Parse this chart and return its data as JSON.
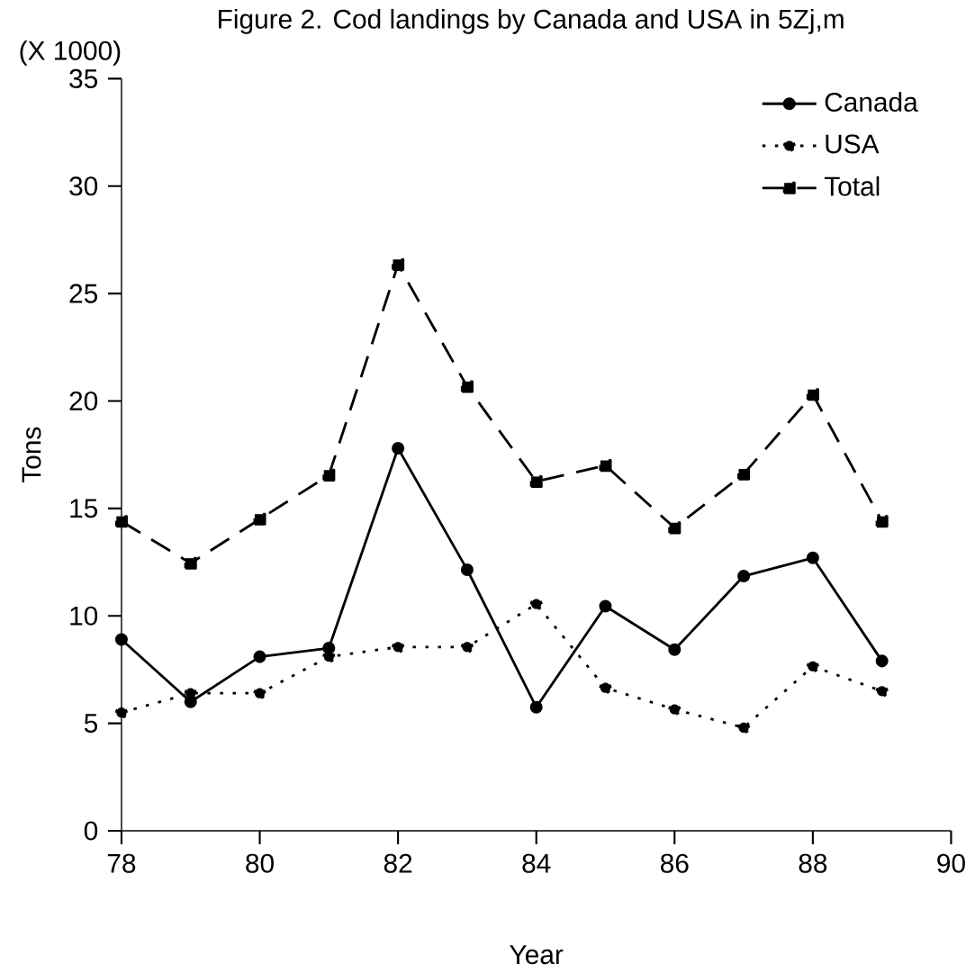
{
  "chart_data": {
    "type": "line",
    "title": "Figure 2. Cod landings by Canada and USA in 5Zj,m",
    "xlabel": "Year",
    "ylabel": "Tons",
    "annotations": [
      "(X 1000)"
    ],
    "x": [
      78,
      79,
      80,
      81,
      82,
      83,
      84,
      85,
      86,
      87,
      88,
      89
    ],
    "series": [
      {
        "name": "Canada",
        "color": "#000000",
        "line_style": "solid",
        "marker": "circle",
        "values": [
          8.9,
          6.0,
          8.1,
          8.5,
          17.8,
          12.15,
          5.75,
          10.45,
          8.43,
          11.85,
          12.7,
          7.9
        ]
      },
      {
        "name": "USA",
        "color": "#000000",
        "line_style": "dotted",
        "marker": "circle",
        "values": [
          5.5,
          6.4,
          6.4,
          8.1,
          8.55,
          8.55,
          10.55,
          6.65,
          5.65,
          4.8,
          7.65,
          6.5
        ]
      },
      {
        "name": "Total",
        "color": "#000000",
        "line_style": "dashed",
        "marker": "square",
        "values": [
          14.4,
          12.45,
          14.5,
          16.55,
          26.35,
          20.67,
          16.25,
          17.0,
          14.1,
          16.6,
          20.3,
          14.4
        ]
      }
    ],
    "xlim": [
      78,
      90
    ],
    "ylim": [
      0,
      35
    ],
    "xticks": [
      78,
      80,
      82,
      84,
      86,
      88,
      90
    ],
    "yticks": [
      0,
      5,
      10,
      15,
      20,
      25,
      30,
      35
    ],
    "grid": false,
    "legend": "top right"
  }
}
